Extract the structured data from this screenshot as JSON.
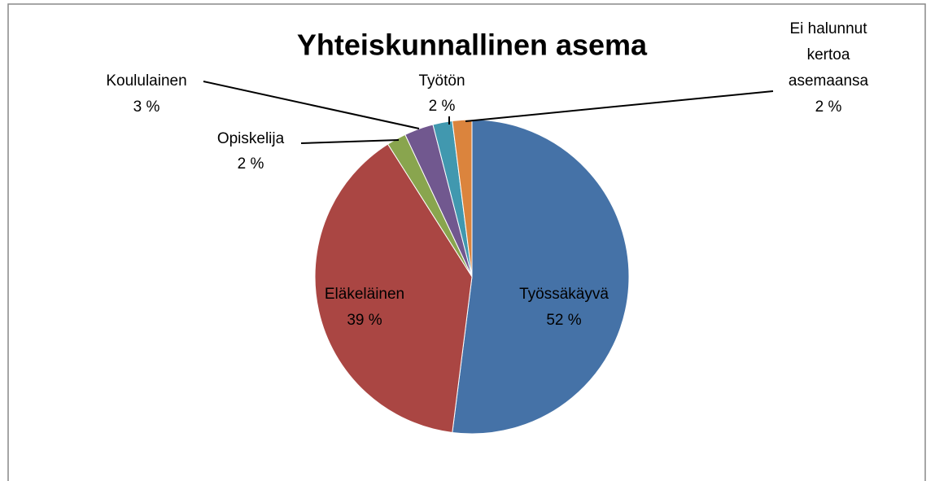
{
  "chart_data": {
    "type": "pie",
    "title": "Yhteiskunnallinen asema",
    "categories": [
      "Työssäkäyvä",
      "Eläkeläinen",
      "Opiskelija",
      "Koululainen",
      "Työtön",
      "Ei halunnut kertoa asemaansa"
    ],
    "values": [
      52,
      39,
      2,
      3,
      2,
      2
    ],
    "value_labels": [
      "52 %",
      "39 %",
      "2 %",
      "3 %",
      "2 %",
      "2 %"
    ],
    "colors": [
      "#4572a7",
      "#aa4643",
      "#89a54e",
      "#71588f",
      "#4198af",
      "#db843d"
    ]
  }
}
